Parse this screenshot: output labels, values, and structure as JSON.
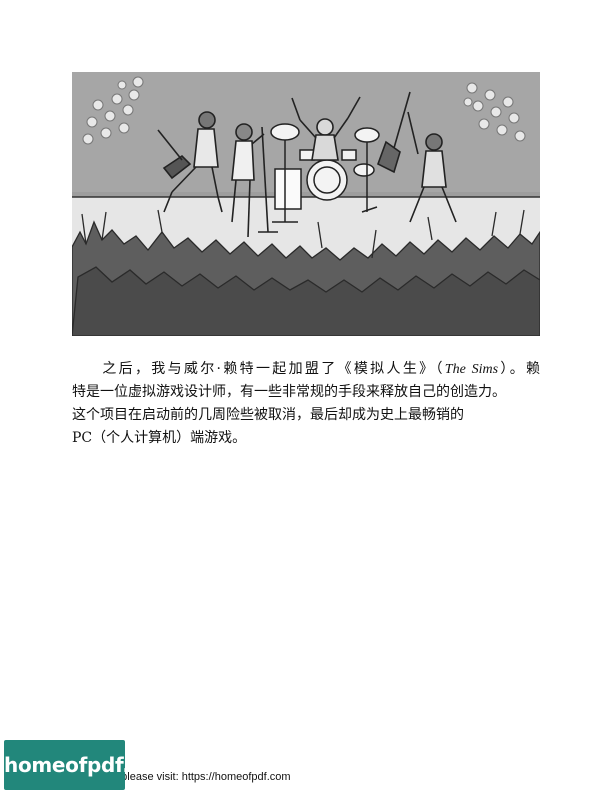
{
  "illustration": {
    "description_icon": "rock-concert-illustration-icon"
  },
  "paragraph": {
    "line1_a": "之后，我与威尔·赖特一起加盟了《模拟人生》（",
    "line1_title": "The Sims",
    "line1_b": "）。赖",
    "line2": "特是一位虚拟游戏设计师，有一些非常规的手段来释放自己的创造力。",
    "line3": "这个项目在启动前的几周险些被取消，最后却成为史上最畅销的",
    "line4": "PC（个人计算机）端游戏。"
  },
  "footer": {
    "logo_text": "homeofpdf.com",
    "note": "e please visit: https://homeofpdf.com"
  },
  "colors": {
    "logo_bg": "#22877b",
    "stage_gray": "#9a9a9a",
    "crowd_gray": "#5e5e5e"
  }
}
